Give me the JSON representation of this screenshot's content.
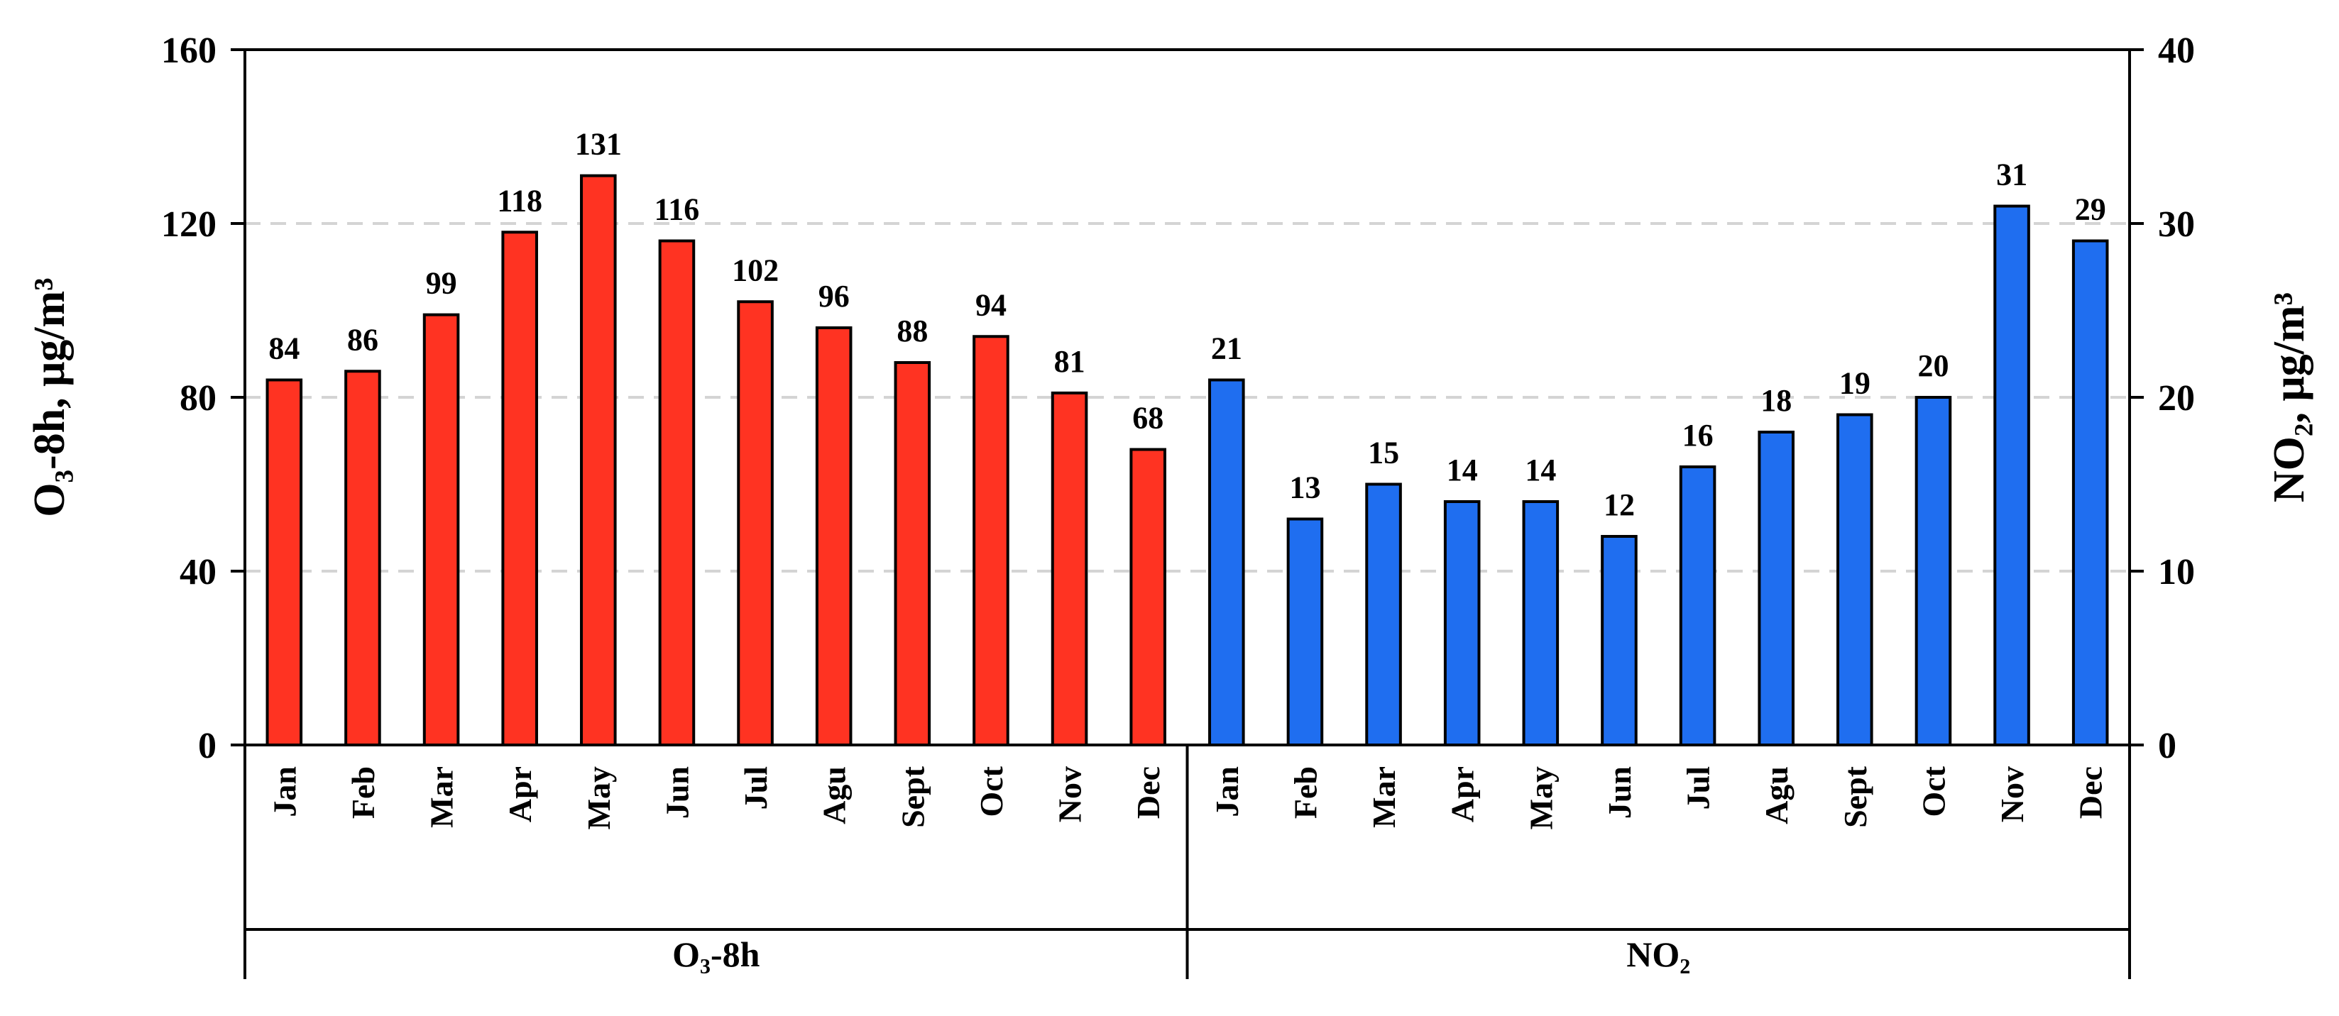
{
  "chart_data": {
    "type": "bar",
    "groups": [
      {
        "name": "O₃-8h",
        "axis": "left",
        "color": "#ff3322",
        "categories": [
          "Jan",
          "Feb",
          "Mar",
          "Apr",
          "May",
          "Jun",
          "Jul",
          "Agu",
          "Sept",
          "Oct",
          "Nov",
          "Dec"
        ],
        "values": [
          84,
          86,
          99,
          118,
          131,
          116,
          102,
          96,
          88,
          94,
          81,
          68
        ]
      },
      {
        "name": "NO₂",
        "axis": "right",
        "color": "#1f6ef0",
        "categories": [
          "Jan",
          "Feb",
          "Mar",
          "Apr",
          "May",
          "Jun",
          "Jul",
          "Agu",
          "Sept",
          "Oct",
          "Nov",
          "Dec"
        ],
        "values": [
          21,
          13,
          15,
          14,
          14,
          12,
          16,
          18,
          19,
          20,
          31,
          29
        ]
      }
    ],
    "left_axis": {
      "label": "O₃-8h, μg/m³",
      "range": [
        0,
        160
      ],
      "ticks": [
        "0",
        "40",
        "80",
        "120",
        "160"
      ]
    },
    "right_axis": {
      "label": "NO₂, μg/m³",
      "range": [
        0,
        40
      ],
      "ticks": [
        "0",
        "10",
        "20",
        "30",
        "40"
      ]
    },
    "grid": "horizontal dashed",
    "data_labels": true,
    "legend": "none"
  }
}
